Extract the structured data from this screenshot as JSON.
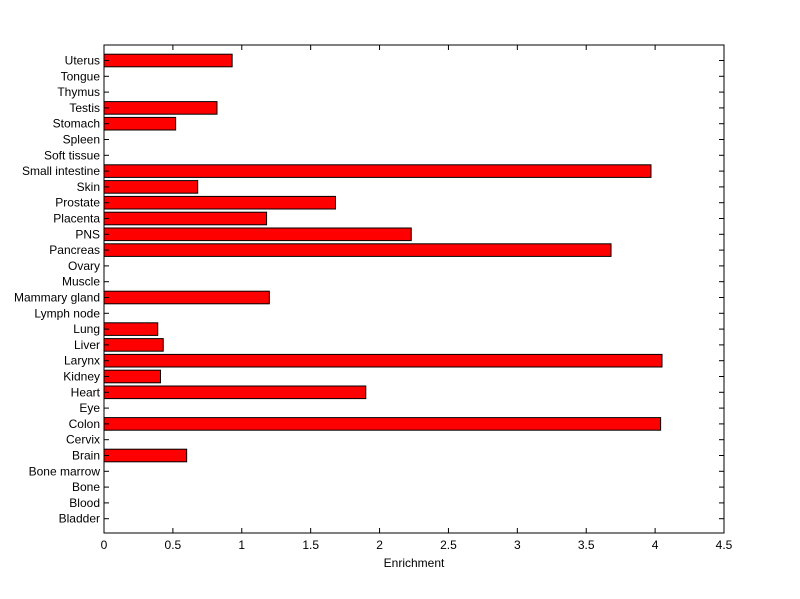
{
  "chart_data": {
    "type": "bar",
    "orientation": "horizontal",
    "xlabel": "Enrichment",
    "xlim": [
      0,
      4.5
    ],
    "xticks": [
      "0",
      "0.5",
      "1",
      "1.5",
      "2",
      "2.5",
      "3",
      "3.5",
      "4",
      "4.5"
    ],
    "grid": false,
    "bar_color": "#ff0000",
    "edge_color": "#000000",
    "categories": [
      "Uterus",
      "Tongue",
      "Thymus",
      "Testis",
      "Stomach",
      "Spleen",
      "Soft tissue",
      "Small intestine",
      "Skin",
      "Prostate",
      "Placenta",
      "PNS",
      "Pancreas",
      "Ovary",
      "Muscle",
      "Mammary gland",
      "Lymph node",
      "Lung",
      "Liver",
      "Larynx",
      "Kidney",
      "Heart",
      "Eye",
      "Colon",
      "Cervix",
      "Brain",
      "Bone marrow",
      "Bone",
      "Blood",
      "Bladder"
    ],
    "values": [
      0.93,
      0,
      0,
      0.82,
      0.52,
      0,
      0,
      3.97,
      0.68,
      1.68,
      1.18,
      2.23,
      3.68,
      0,
      0,
      1.2,
      0,
      0.39,
      0.43,
      4.05,
      0.41,
      1.9,
      0,
      4.04,
      0,
      0.6,
      0,
      0,
      0,
      0
    ]
  }
}
